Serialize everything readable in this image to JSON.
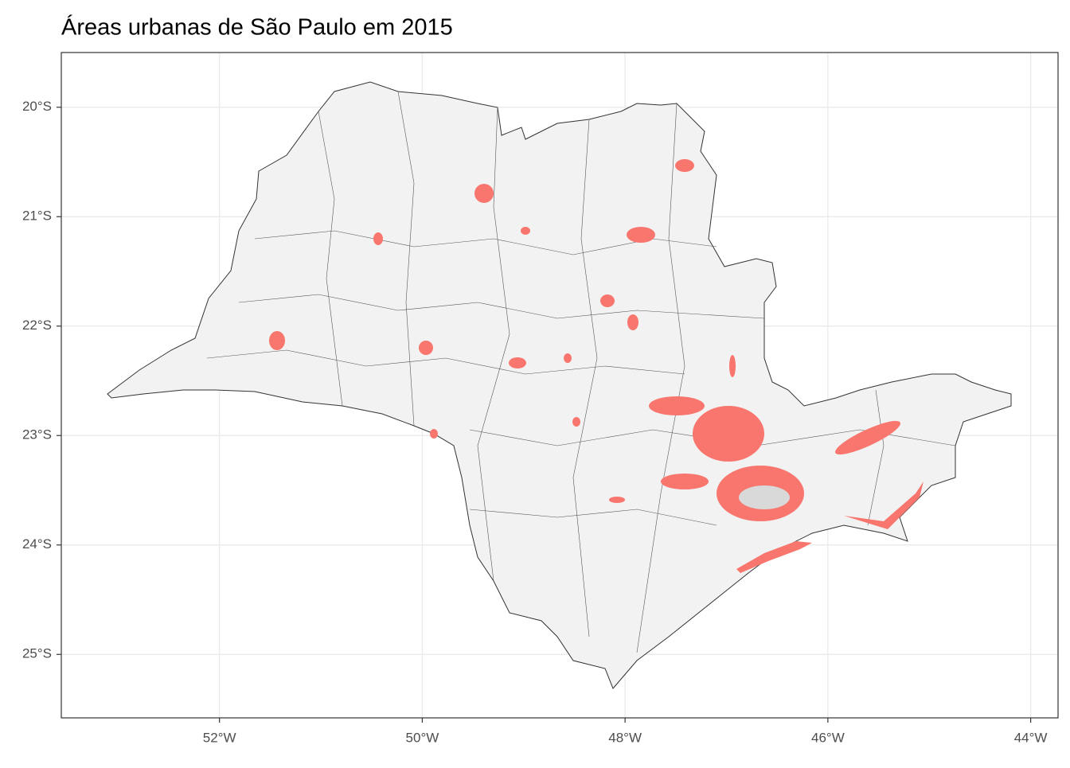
{
  "chart_data": {
    "type": "map",
    "title": "Áreas urbanas de São Paulo em 2015",
    "xlim": [
      -53.56,
      -43.73
    ],
    "ylim": [
      -25.58,
      -19.5
    ],
    "xticks": [
      {
        "value": -52,
        "label": "52°W"
      },
      {
        "value": -50,
        "label": "50°W"
      },
      {
        "value": -48,
        "label": "48°W"
      },
      {
        "value": -46,
        "label": "46°W"
      },
      {
        "value": -44,
        "label": "44°W"
      }
    ],
    "yticks": [
      {
        "value": -20,
        "label": "20°S"
      },
      {
        "value": -21,
        "label": "21°S"
      },
      {
        "value": -22,
        "label": "22°S"
      },
      {
        "value": -23,
        "label": "23°S"
      },
      {
        "value": -24,
        "label": "24°S"
      },
      {
        "value": -25,
        "label": "25°S"
      }
    ],
    "grid": true
  }
}
